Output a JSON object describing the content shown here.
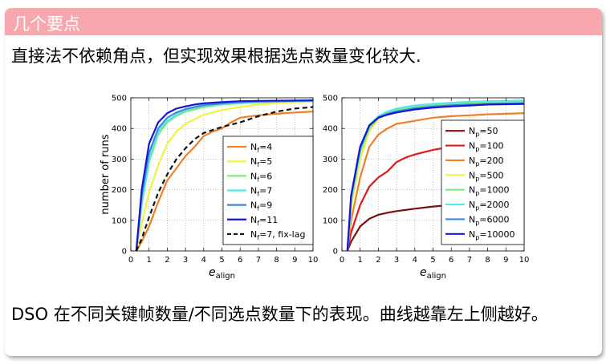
{
  "block": {
    "title": "几个要点",
    "intro": "直接法不依赖角点，但实现效果根据选点数量变化较大.",
    "outro": "DSO 在不同关键帧数量/不同选点数量下的表现。曲线越靠左上侧越好。"
  },
  "colors": {
    "header": "#f7a7ad"
  },
  "chart_data": [
    {
      "type": "line",
      "title": "",
      "xlabel": "e",
      "xlabel_sub": "align",
      "ylabel": "number of runs",
      "xlim": [
        0,
        10
      ],
      "ylim": [
        0,
        500
      ],
      "xticks": [
        "0",
        "1",
        "2",
        "3",
        "4",
        "5",
        "6",
        "7",
        "8",
        "9",
        "10"
      ],
      "yticks": [
        "0",
        "100",
        "200",
        "300",
        "400",
        "500"
      ],
      "grid": true,
      "legend": "right",
      "series": [
        {
          "label": "N",
          "sub": "f",
          "tail": "=4",
          "color": "#f07f29",
          "dash": false,
          "x": [
            0.3,
            0.6,
            1,
            1.5,
            2,
            2.5,
            3,
            3.5,
            4,
            4.5,
            5,
            5.5,
            6,
            7,
            8,
            9,
            10
          ],
          "y": [
            0,
            30,
            80,
            160,
            230,
            270,
            310,
            340,
            375,
            390,
            400,
            420,
            435,
            443,
            448,
            452,
            455
          ]
        },
        {
          "label": "N",
          "sub": "f",
          "tail": "=5",
          "color": "#f2f241",
          "dash": false,
          "x": [
            0.3,
            0.6,
            1,
            1.5,
            2,
            2.5,
            3,
            3.5,
            4,
            5,
            6,
            7,
            8,
            9,
            10
          ],
          "y": [
            0,
            90,
            190,
            280,
            350,
            390,
            415,
            430,
            445,
            460,
            470,
            478,
            483,
            485,
            487
          ]
        },
        {
          "label": "N",
          "sub": "f",
          "tail": "=6",
          "color": "#7fe87f",
          "dash": false,
          "x": [
            0.3,
            0.6,
            1,
            1.5,
            2,
            2.5,
            3,
            3.5,
            4,
            5,
            6,
            7,
            8,
            10
          ],
          "y": [
            0,
            150,
            290,
            380,
            420,
            440,
            455,
            462,
            470,
            478,
            482,
            485,
            487,
            490
          ]
        },
        {
          "label": "N",
          "sub": "f",
          "tail": "=7",
          "color": "#55e6e6",
          "dash": false,
          "x": [
            0.3,
            0.6,
            1,
            1.5,
            2,
            2.5,
            3,
            3.5,
            4,
            5,
            6,
            7,
            10
          ],
          "y": [
            0,
            160,
            300,
            390,
            425,
            445,
            460,
            468,
            474,
            480,
            484,
            487,
            490
          ]
        },
        {
          "label": "N",
          "sub": "f",
          "tail": "=9",
          "color": "#3f8ad8",
          "dash": false,
          "x": [
            0.3,
            0.6,
            1,
            1.5,
            2,
            2.5,
            3,
            3.5,
            4,
            5,
            6,
            7,
            10
          ],
          "y": [
            0,
            180,
            320,
            400,
            435,
            452,
            463,
            470,
            476,
            482,
            486,
            488,
            491
          ]
        },
        {
          "label": "N",
          "sub": "f",
          "tail": "=11",
          "color": "#1515d8",
          "dash": false,
          "x": [
            0.3,
            0.6,
            1,
            1.5,
            2,
            2.5,
            3,
            3.5,
            4,
            5,
            6,
            7,
            10
          ],
          "y": [
            0,
            200,
            350,
            420,
            450,
            465,
            472,
            478,
            482,
            486,
            489,
            490,
            492
          ]
        },
        {
          "label": "N",
          "sub": "f",
          "tail": "=7, fix-lag",
          "color": "#111111",
          "dash": true,
          "x": [
            0.3,
            0.6,
            1,
            1.5,
            2,
            2.5,
            3,
            3.5,
            4,
            4.5,
            5,
            6,
            7,
            8,
            9,
            10
          ],
          "y": [
            0,
            40,
            110,
            190,
            250,
            300,
            335,
            365,
            385,
            395,
            405,
            420,
            440,
            455,
            465,
            470
          ]
        }
      ]
    },
    {
      "type": "line",
      "title": "",
      "xlabel": "e",
      "xlabel_sub": "align",
      "ylabel": "",
      "xlim": [
        0,
        10
      ],
      "ylim": [
        0,
        500
      ],
      "xticks": [
        "0",
        "1",
        "2",
        "3",
        "4",
        "5",
        "6",
        "7",
        "8",
        "9",
        "10"
      ],
      "yticks": [
        "0",
        "100",
        "200",
        "300",
        "400",
        "500"
      ],
      "grid": true,
      "legend": "right",
      "series": [
        {
          "label": "N",
          "sub": "p",
          "tail": "=50",
          "color": "#7a0f0f",
          "dash": false,
          "x": [
            0.3,
            0.5,
            1,
            1.5,
            2,
            2.5,
            3,
            4,
            5,
            6,
            7,
            8,
            9,
            10
          ],
          "y": [
            0,
            30,
            80,
            105,
            118,
            125,
            130,
            138,
            145,
            150,
            155,
            158,
            162,
            165
          ]
        },
        {
          "label": "N",
          "sub": "p",
          "tail": "=100",
          "color": "#e01a1a",
          "dash": false,
          "x": [
            0.3,
            0.5,
            1,
            1.5,
            2,
            2.5,
            3,
            3.5,
            4,
            5,
            6,
            7,
            8,
            9,
            10
          ],
          "y": [
            0,
            60,
            150,
            210,
            240,
            260,
            290,
            305,
            315,
            330,
            340,
            350,
            355,
            362,
            368
          ]
        },
        {
          "label": "N",
          "sub": "p",
          "tail": "=200",
          "color": "#f07f29",
          "dash": false,
          "x": [
            0.3,
            0.5,
            1,
            1.5,
            2,
            2.5,
            3,
            4,
            5,
            6,
            7,
            8,
            9,
            10
          ],
          "y": [
            0,
            100,
            240,
            340,
            380,
            400,
            415,
            425,
            435,
            440,
            443,
            446,
            448,
            450
          ]
        },
        {
          "label": "N",
          "sub": "p",
          "tail": "=500",
          "color": "#f2f241",
          "dash": false,
          "x": [
            0.3,
            0.5,
            1,
            1.5,
            2,
            2.5,
            3,
            4,
            5,
            6,
            7,
            8,
            10
          ],
          "y": [
            0,
            140,
            300,
            390,
            430,
            450,
            460,
            470,
            475,
            478,
            480,
            482,
            484
          ]
        },
        {
          "label": "N",
          "sub": "p",
          "tail": "=1000",
          "color": "#7fe87f",
          "dash": false,
          "x": [
            0.3,
            0.5,
            1,
            1.5,
            2,
            2.5,
            3,
            4,
            5,
            6,
            7,
            8,
            10
          ],
          "y": [
            0,
            160,
            320,
            400,
            435,
            452,
            462,
            472,
            478,
            482,
            484,
            486,
            488
          ]
        },
        {
          "label": "N",
          "sub": "p",
          "tail": "=2000",
          "color": "#55e6e6",
          "dash": false,
          "x": [
            0.3,
            0.5,
            1,
            1.5,
            2,
            2.5,
            3,
            4,
            5,
            6,
            7,
            8,
            10
          ],
          "y": [
            0,
            170,
            330,
            410,
            440,
            455,
            465,
            475,
            480,
            484,
            487,
            489,
            491
          ]
        },
        {
          "label": "N",
          "sub": "p",
          "tail": "=6000",
          "color": "#3f8ad8",
          "dash": false,
          "x": [
            0.3,
            0.5,
            1,
            1.5,
            2,
            2.5,
            3,
            4,
            5,
            6,
            7,
            8,
            10
          ],
          "y": [
            0,
            175,
            335,
            408,
            436,
            448,
            456,
            466,
            472,
            476,
            478,
            480,
            482
          ]
        },
        {
          "label": "N",
          "sub": "p",
          "tail": "=10000",
          "color": "#1515d8",
          "dash": false,
          "x": [
            0.3,
            0.5,
            1,
            1.5,
            2,
            2.5,
            3,
            4,
            5,
            6,
            7,
            8,
            10
          ],
          "y": [
            0,
            180,
            340,
            410,
            435,
            445,
            452,
            462,
            468,
            472,
            475,
            478,
            480
          ]
        }
      ]
    }
  ]
}
